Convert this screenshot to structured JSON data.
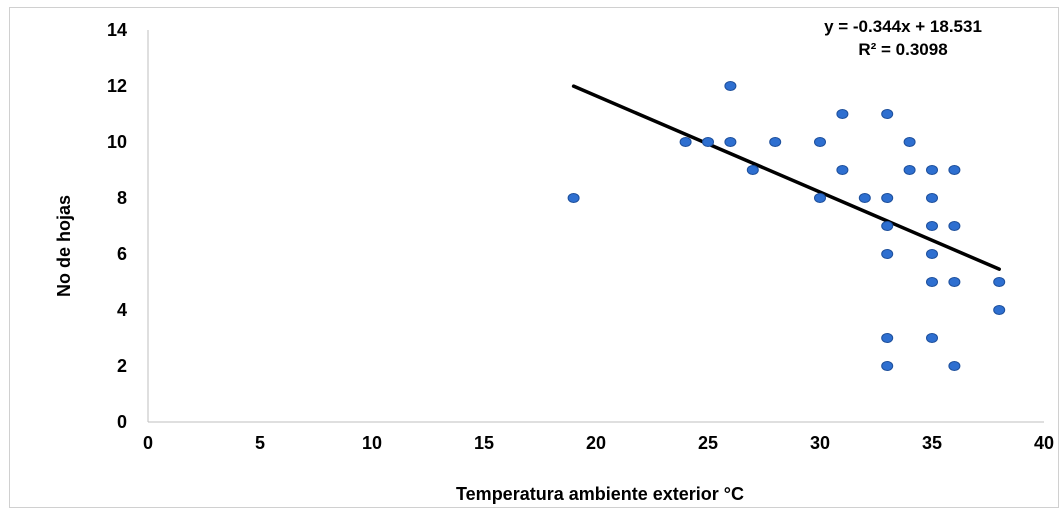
{
  "chart_data": {
    "type": "scatter",
    "title": "",
    "xlabel": "Temperatura ambiente exterior °C",
    "ylabel": "No de hojas",
    "xlim": [
      0,
      40
    ],
    "ylim": [
      0,
      14
    ],
    "x_ticks": [
      "0",
      "5",
      "10",
      "15",
      "20",
      "25",
      "30",
      "35",
      "40"
    ],
    "y_ticks": [
      "0",
      "2",
      "4",
      "6",
      "8",
      "10",
      "12",
      "14"
    ],
    "grid": false,
    "legend": "none",
    "marker_color": "#2e6fd0",
    "marker_edge_color": "#1d4f9c",
    "points": [
      {
        "x": 19,
        "y": 8
      },
      {
        "x": 24,
        "y": 10
      },
      {
        "x": 25,
        "y": 10
      },
      {
        "x": 26,
        "y": 12
      },
      {
        "x": 26,
        "y": 10
      },
      {
        "x": 27,
        "y": 9
      },
      {
        "x": 28,
        "y": 10
      },
      {
        "x": 30,
        "y": 10
      },
      {
        "x": 30,
        "y": 8
      },
      {
        "x": 31,
        "y": 11
      },
      {
        "x": 31,
        "y": 9
      },
      {
        "x": 32,
        "y": 8
      },
      {
        "x": 33,
        "y": 11
      },
      {
        "x": 33,
        "y": 8
      },
      {
        "x": 33,
        "y": 7
      },
      {
        "x": 33,
        "y": 6
      },
      {
        "x": 33,
        "y": 3
      },
      {
        "x": 33,
        "y": 2
      },
      {
        "x": 34,
        "y": 10
      },
      {
        "x": 34,
        "y": 9
      },
      {
        "x": 35,
        "y": 9
      },
      {
        "x": 35,
        "y": 8
      },
      {
        "x": 35,
        "y": 7
      },
      {
        "x": 35,
        "y": 6
      },
      {
        "x": 35,
        "y": 5
      },
      {
        "x": 35,
        "y": 3
      },
      {
        "x": 36,
        "y": 9
      },
      {
        "x": 36,
        "y": 7
      },
      {
        "x": 36,
        "y": 5
      },
      {
        "x": 36,
        "y": 2
      },
      {
        "x": 38,
        "y": 5
      },
      {
        "x": 38,
        "y": 4
      }
    ],
    "trendline": {
      "slope": -0.344,
      "intercept": 18.531,
      "x_range": [
        19,
        38
      ],
      "color": "#000000",
      "equation_label": "y = -0.344x + 18.531",
      "r2_label": "R² = 0.3098"
    }
  }
}
